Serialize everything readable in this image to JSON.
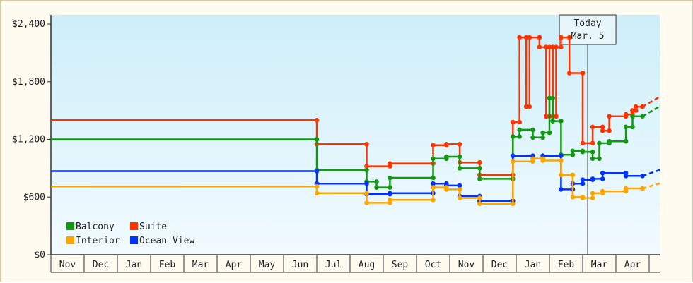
{
  "chart_data": {
    "type": "line",
    "title": "",
    "xlabel": "",
    "ylabel": "",
    "x_months": [
      "Nov",
      "Dec",
      "Jan",
      "Feb",
      "Mar",
      "Apr",
      "May",
      "Jun",
      "Jul",
      "Aug",
      "Sep",
      "Oct",
      "Nov",
      "Dec",
      "Jan",
      "Feb",
      "Mar",
      "Apr"
    ],
    "y_ticks": [
      "$0",
      "$600",
      "$1,200",
      "$1,800",
      "$2,400"
    ],
    "ylim": [
      0,
      2400
    ],
    "today": {
      "line1": "Today",
      "line2": "Mar. 5",
      "month_index": 16.15
    },
    "legend": [
      {
        "name": "Balcony",
        "color": "#119911"
      },
      {
        "name": "Suite",
        "color": "#ff3300"
      },
      {
        "name": "Interior",
        "color": "#ffa500"
      },
      {
        "name": "Ocean View",
        "color": "#0033ff"
      }
    ],
    "series": [
      {
        "name": "Suite",
        "color": "#ff3300",
        "points": [
          [
            0,
            1400
          ],
          [
            8,
            1400
          ],
          [
            8,
            1150
          ],
          [
            9.5,
            1150
          ],
          [
            9.5,
            920
          ],
          [
            10.2,
            920
          ],
          [
            10.2,
            950
          ],
          [
            11.5,
            950
          ],
          [
            11.5,
            1140
          ],
          [
            11.9,
            1140
          ],
          [
            11.9,
            1150
          ],
          [
            12.3,
            1150
          ],
          [
            12.3,
            960
          ],
          [
            12.9,
            960
          ],
          [
            12.9,
            830
          ],
          [
            13.9,
            830
          ],
          [
            13.9,
            1380
          ],
          [
            14.1,
            1380
          ],
          [
            14.1,
            2260
          ],
          [
            14.3,
            2260
          ],
          [
            14.3,
            1540
          ],
          [
            14.4,
            1540
          ],
          [
            14.4,
            2260
          ],
          [
            14.7,
            2260
          ],
          [
            14.7,
            2160
          ],
          [
            14.9,
            2160
          ],
          [
            14.9,
            1440
          ],
          [
            15.0,
            1440
          ],
          [
            15.0,
            2160
          ],
          [
            15.1,
            2160
          ],
          [
            15.1,
            1440
          ],
          [
            15.2,
            1440
          ],
          [
            15.2,
            2160
          ],
          [
            15.35,
            2160
          ],
          [
            15.35,
            2260
          ],
          [
            15.6,
            2260
          ],
          [
            15.6,
            1890
          ],
          [
            16.0,
            1890
          ],
          [
            16.0,
            1160
          ],
          [
            16.3,
            1160
          ],
          [
            16.3,
            1330
          ],
          [
            16.6,
            1330
          ],
          [
            16.6,
            1290
          ],
          [
            16.8,
            1290
          ],
          [
            16.8,
            1440
          ],
          [
            17.3,
            1440
          ],
          [
            17.3,
            1460
          ],
          [
            17.5,
            1460
          ],
          [
            17.5,
            1500
          ],
          [
            17.6,
            1500
          ],
          [
            17.6,
            1540
          ],
          [
            17.8,
            1540
          ]
        ]
      },
      {
        "name": "Balcony",
        "color": "#119911",
        "points": [
          [
            0,
            1200
          ],
          [
            8,
            1200
          ],
          [
            8,
            880
          ],
          [
            9.5,
            880
          ],
          [
            9.5,
            760
          ],
          [
            9.8,
            760
          ],
          [
            9.8,
            700
          ],
          [
            10.2,
            700
          ],
          [
            10.2,
            800
          ],
          [
            11.5,
            800
          ],
          [
            11.5,
            1000
          ],
          [
            11.9,
            1000
          ],
          [
            11.9,
            1020
          ],
          [
            12.3,
            1020
          ],
          [
            12.3,
            900
          ],
          [
            12.9,
            900
          ],
          [
            12.9,
            790
          ],
          [
            13.9,
            790
          ],
          [
            13.9,
            1230
          ],
          [
            14.1,
            1230
          ],
          [
            14.1,
            1300
          ],
          [
            14.5,
            1300
          ],
          [
            14.5,
            1220
          ],
          [
            14.8,
            1220
          ],
          [
            14.8,
            1270
          ],
          [
            15.0,
            1270
          ],
          [
            15.0,
            1630
          ],
          [
            15.1,
            1630
          ],
          [
            15.1,
            1390
          ],
          [
            15.35,
            1390
          ],
          [
            15.35,
            1040
          ],
          [
            15.7,
            1040
          ],
          [
            15.7,
            1080
          ],
          [
            16.0,
            1080
          ],
          [
            16.0,
            1070
          ],
          [
            16.3,
            1070
          ],
          [
            16.3,
            1000
          ],
          [
            16.5,
            1000
          ],
          [
            16.5,
            1160
          ],
          [
            16.8,
            1160
          ],
          [
            16.8,
            1180
          ],
          [
            17.3,
            1180
          ],
          [
            17.3,
            1330
          ],
          [
            17.5,
            1330
          ],
          [
            17.5,
            1440
          ],
          [
            17.8,
            1440
          ]
        ]
      },
      {
        "name": "Ocean View",
        "color": "#0033ff",
        "points": [
          [
            0,
            870
          ],
          [
            8,
            870
          ],
          [
            8,
            740
          ],
          [
            9.5,
            740
          ],
          [
            9.5,
            630
          ],
          [
            10.2,
            630
          ],
          [
            10.2,
            640
          ],
          [
            11.5,
            640
          ],
          [
            11.5,
            740
          ],
          [
            11.9,
            740
          ],
          [
            11.9,
            720
          ],
          [
            12.3,
            720
          ],
          [
            12.3,
            610
          ],
          [
            12.9,
            610
          ],
          [
            12.9,
            560
          ],
          [
            13.9,
            560
          ],
          [
            13.9,
            1030
          ],
          [
            14.5,
            1030
          ],
          [
            14.5,
            1000
          ],
          [
            14.8,
            1000
          ],
          [
            14.8,
            1030
          ],
          [
            15.35,
            1030
          ],
          [
            15.35,
            680
          ],
          [
            15.7,
            680
          ],
          [
            15.7,
            740
          ],
          [
            16.0,
            740
          ],
          [
            16.0,
            780
          ],
          [
            16.3,
            780
          ],
          [
            16.3,
            790
          ],
          [
            16.6,
            790
          ],
          [
            16.6,
            850
          ],
          [
            17.3,
            850
          ],
          [
            17.3,
            820
          ],
          [
            17.8,
            820
          ]
        ]
      },
      {
        "name": "Interior",
        "color": "#ffa500",
        "points": [
          [
            0,
            710
          ],
          [
            8,
            710
          ],
          [
            8,
            640
          ],
          [
            9.5,
            640
          ],
          [
            9.5,
            540
          ],
          [
            10.2,
            540
          ],
          [
            10.2,
            570
          ],
          [
            11.5,
            570
          ],
          [
            11.5,
            700
          ],
          [
            11.9,
            700
          ],
          [
            11.9,
            680
          ],
          [
            12.3,
            680
          ],
          [
            12.3,
            590
          ],
          [
            12.9,
            590
          ],
          [
            12.9,
            530
          ],
          [
            13.9,
            530
          ],
          [
            13.9,
            970
          ],
          [
            14.5,
            970
          ],
          [
            14.5,
            1000
          ],
          [
            14.8,
            1000
          ],
          [
            14.8,
            980
          ],
          [
            15.35,
            980
          ],
          [
            15.35,
            830
          ],
          [
            15.7,
            830
          ],
          [
            15.7,
            600
          ],
          [
            16.0,
            600
          ],
          [
            16.0,
            590
          ],
          [
            16.3,
            590
          ],
          [
            16.3,
            640
          ],
          [
            16.6,
            640
          ],
          [
            16.6,
            660
          ],
          [
            17.3,
            660
          ],
          [
            17.3,
            690
          ],
          [
            17.8,
            690
          ]
        ]
      }
    ],
    "projections": [
      {
        "name": "Suite",
        "from": [
          17.8,
          1540
        ],
        "to": [
          19.3,
          1840
        ]
      },
      {
        "name": "Balcony",
        "from": [
          17.8,
          1440
        ],
        "to": [
          19.3,
          1740
        ]
      },
      {
        "name": "Ocean View",
        "from": [
          17.8,
          820
        ],
        "to": [
          19.3,
          1000
        ]
      },
      {
        "name": "Interior",
        "from": [
          17.8,
          690
        ],
        "to": [
          19.3,
          840
        ]
      }
    ]
  }
}
